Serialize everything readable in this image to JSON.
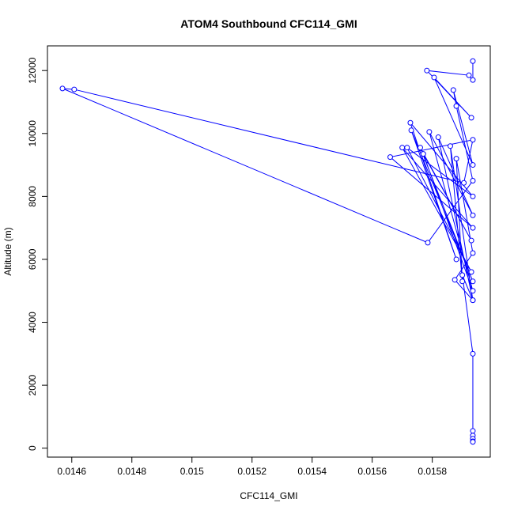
{
  "chart_data": {
    "type": "line",
    "title": "ATOM4 Southbound CFC114_GMI",
    "x_label": "CFC114_GMI",
    "y_label": "Altitude (m)",
    "series": [
      {
        "color": "#0000ff",
        "x": [
          0.015935,
          0.015935,
          0.015922,
          0.015782,
          0.01593,
          0.015806,
          0.015935,
          0.01587,
          0.01588,
          0.015935,
          0.015785,
          0.014569,
          0.014608,
          0.015905,
          0.015935,
          0.01566,
          0.015935,
          0.0157,
          0.01593,
          0.015716,
          0.015935,
          0.015727,
          0.01588,
          0.01573,
          0.015935,
          0.01576,
          0.01593,
          0.01577,
          0.015935,
          0.01579,
          0.015935,
          0.01582,
          0.015935,
          0.01586,
          0.0159,
          0.01588,
          0.015935,
          0.015875,
          0.015935,
          0.0159,
          0.015935,
          0.015935,
          0.015935,
          0.015935,
          0.015935,
          0.015935
        ],
        "values": [
          12300,
          11700,
          11850,
          12000,
          10500,
          11780,
          9000,
          11380,
          10870,
          8500,
          6530,
          11430,
          11400,
          8430,
          9800,
          9250,
          7000,
          9550,
          5600,
          9550,
          8000,
          10340,
          6000,
          10100,
          5300,
          9550,
          6600,
          9350,
          5000,
          10050,
          7400,
          9880,
          4700,
          9600,
          5300,
          9200,
          6200,
          5350,
          4700,
          5500,
          3000,
          550,
          400,
          300,
          220,
          200
        ]
      }
    ],
    "xlim": [
      0.014519,
      0.015993
    ],
    "xticks": [
      0.0146,
      0.0148,
      0.015,
      0.0152,
      0.0154,
      0.0156,
      0.0158
    ],
    "ylim": [
      -284,
      12784
    ],
    "yticks": [
      0,
      2000,
      4000,
      6000,
      8000,
      10000,
      12000
    ]
  }
}
